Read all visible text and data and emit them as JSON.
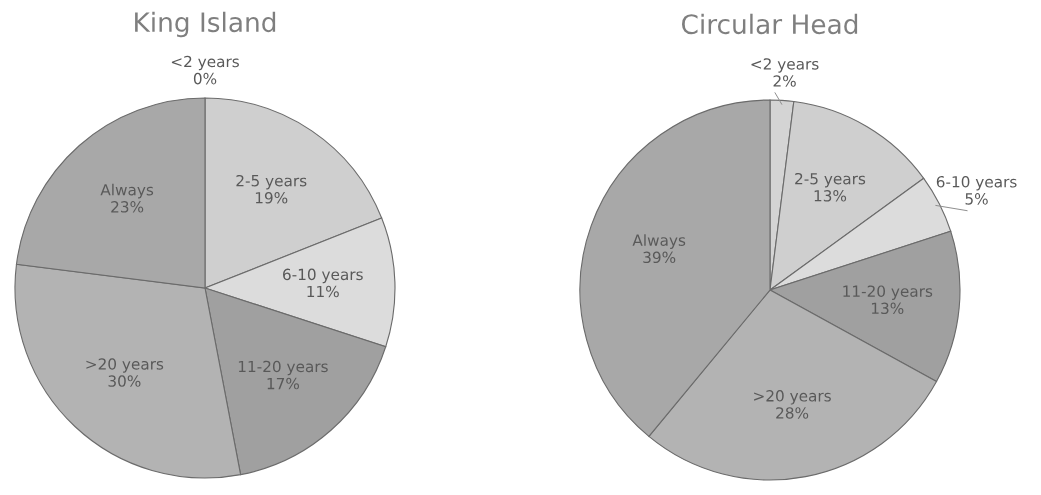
{
  "chart_data": [
    {
      "type": "pie",
      "title": "King Island",
      "categories": [
        "<2 years",
        "2-5 years",
        "6-10 years",
        "11-20 years",
        ">20 years",
        "Always"
      ],
      "values": [
        0,
        19,
        11,
        17,
        30,
        23
      ],
      "value_labels": [
        "0%",
        "19%",
        "11%",
        "17%",
        "30%",
        "23%"
      ],
      "colors": [
        "#d4d4d4",
        "#cfcfcf",
        "#dcdcdc",
        "#a0a0a0",
        "#b3b3b3",
        "#a8a8a8"
      ]
    },
    {
      "type": "pie",
      "title": "Circular Head",
      "categories": [
        "<2 years",
        "2-5 years",
        "6-10 years",
        "11-20 years",
        ">20 years",
        "Always"
      ],
      "values": [
        2,
        13,
        5,
        13,
        28,
        39
      ],
      "value_labels": [
        "2%",
        "13%",
        "5%",
        "13%",
        "28%",
        "39%"
      ],
      "colors": [
        "#d4d4d4",
        "#cfcfcf",
        "#dcdcdc",
        "#a0a0a0",
        "#b3b3b3",
        "#a8a8a8"
      ]
    }
  ]
}
